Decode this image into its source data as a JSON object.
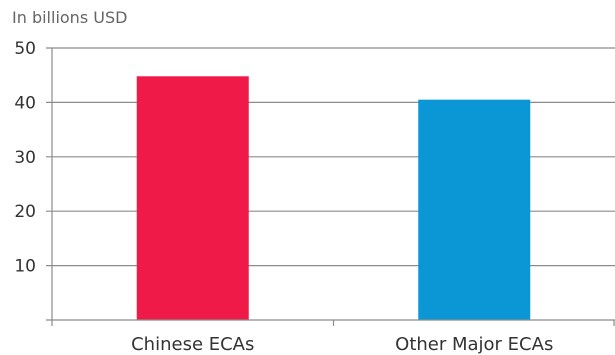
{
  "chart_data": {
    "type": "bar",
    "unit_label": "In billions USD",
    "categories": [
      "Chinese ECAs",
      "Other Major ECAs"
    ],
    "values": [
      44.8,
      40.5
    ],
    "bar_colors": [
      "#ef1a48",
      "#0b96d5"
    ],
    "y_ticks": [
      "10",
      "20",
      "30",
      "40",
      "50"
    ],
    "ylim": [
      0,
      50
    ],
    "grid": true,
    "legend": "none"
  }
}
